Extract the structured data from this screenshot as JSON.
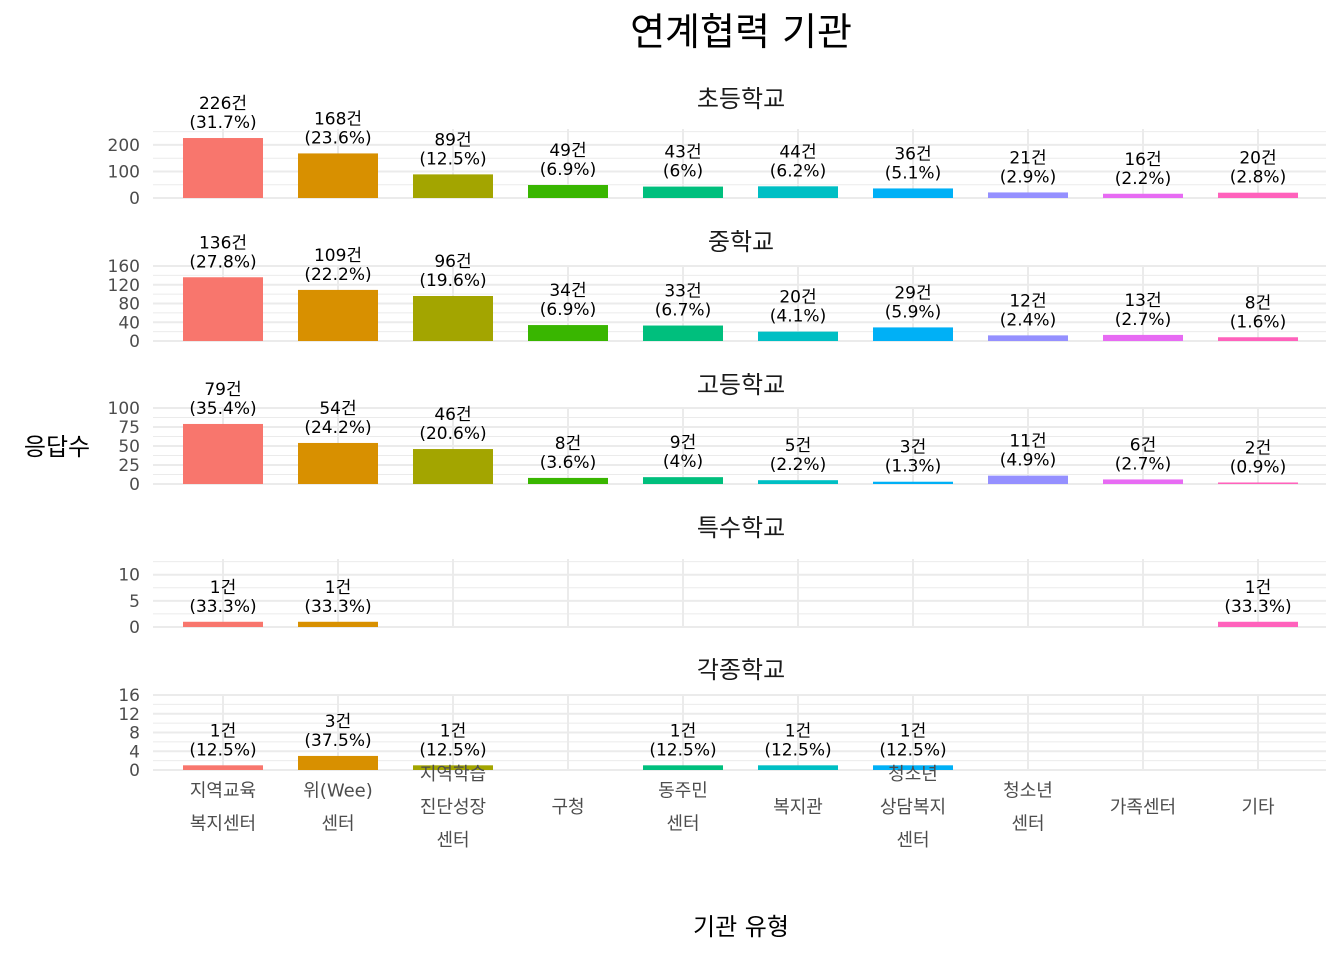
{
  "chart_data": {
    "type": "bar",
    "title": "연계협력 기관",
    "xlabel": "기관 유형",
    "ylabel": "응답수",
    "categories": [
      "지역교육\n복지센터",
      "위(Wee)\n센터",
      "지역학습\n진단성장\n센터",
      "구청",
      "동주민\n센터",
      "복지관",
      "청소년\n상담복지\n센터",
      "청소년\n센터",
      "가족센터",
      "기타"
    ],
    "colors": [
      "#F8766D",
      "#D89000",
      "#A3A500",
      "#39B600",
      "#00BF7D",
      "#00BFC4",
      "#00B0F6",
      "#9590FF",
      "#E76BF3",
      "#FF62BC"
    ],
    "panels": [
      {
        "name": "초등학교",
        "ylim": [
          0,
          260
        ],
        "yticks": [
          0,
          100,
          200
        ],
        "values": [
          226,
          168,
          89,
          49,
          43,
          44,
          36,
          21,
          16,
          20
        ],
        "labels": [
          "226건\n(31.7%)",
          "168건\n(23.6%)",
          "89건\n(12.5%)",
          "49건\n(6.9%)",
          "43건\n(6%)",
          "44건\n(6.2%)",
          "36건\n(5.1%)",
          "21건\n(2.9%)",
          "16건\n(2.2%)",
          "20건\n(2.8%)"
        ]
      },
      {
        "name": "중학교",
        "ylim": [
          0,
          160
        ],
        "yticks": [
          0,
          40,
          80,
          120,
          160
        ],
        "values": [
          136,
          109,
          96,
          34,
          33,
          20,
          29,
          12,
          13,
          8
        ],
        "labels": [
          "136건\n(27.8%)",
          "109건\n(22.2%)",
          "96건\n(19.6%)",
          "34건\n(6.9%)",
          "33건\n(6.7%)",
          "20건\n(4.1%)",
          "29건\n(5.9%)",
          "12건\n(2.4%)",
          "13건\n(2.7%)",
          "8건\n(1.6%)"
        ]
      },
      {
        "name": "고등학교",
        "ylim": [
          0,
          100
        ],
        "yticks": [
          0,
          25,
          50,
          75,
          100
        ],
        "values": [
          79,
          54,
          46,
          8,
          9,
          5,
          3,
          11,
          6,
          2
        ],
        "labels": [
          "79건\n(35.4%)",
          "54건\n(24.2%)",
          "46건\n(20.6%)",
          "8건\n(3.6%)",
          "9건\n(4%)",
          "5건\n(2.2%)",
          "3건\n(1.3%)",
          "11건\n(4.9%)",
          "6건\n(2.7%)",
          "2건\n(0.9%)"
        ]
      },
      {
        "name": "특수학교",
        "ylim": [
          0,
          13
        ],
        "yticks": [
          0,
          5,
          10
        ],
        "values": [
          1,
          1,
          null,
          null,
          null,
          null,
          null,
          null,
          null,
          1
        ],
        "labels": [
          "1건\n(33.3%)",
          "1건\n(33.3%)",
          "",
          "",
          "",
          "",
          "",
          "",
          "",
          "1건\n(33.3%)"
        ]
      },
      {
        "name": "각종학교",
        "ylim": [
          0,
          16
        ],
        "yticks": [
          0,
          4,
          8,
          12,
          16
        ],
        "values": [
          1,
          3,
          1,
          null,
          1,
          1,
          1,
          null,
          null,
          null
        ],
        "labels": [
          "1건\n(12.5%)",
          "3건\n(37.5%)",
          "1건\n(12.5%)",
          "",
          "1건\n(12.5%)",
          "1건\n(12.5%)",
          "1건\n(12.5%)",
          "",
          "",
          ""
        ]
      }
    ],
    "grid": true,
    "legend": "none"
  }
}
